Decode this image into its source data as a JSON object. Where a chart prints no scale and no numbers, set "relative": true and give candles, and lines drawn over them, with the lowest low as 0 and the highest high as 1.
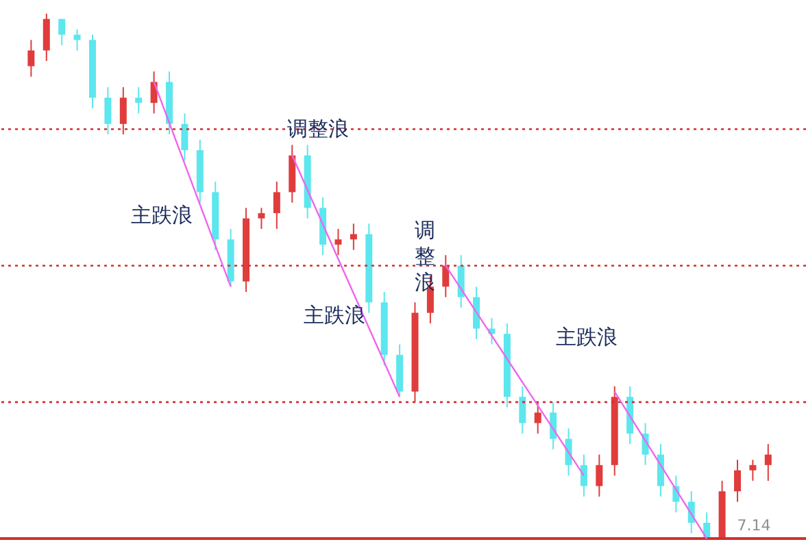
{
  "chart_data": {
    "type": "candlestick",
    "relative": true,
    "categories": [
      null,
      null,
      null,
      null,
      null,
      null,
      null,
      null,
      null,
      null,
      null,
      null,
      null,
      null,
      null,
      null,
      null,
      null,
      null,
      null,
      null,
      null,
      null,
      null,
      null,
      null,
      null,
      null,
      null,
      null,
      null,
      null,
      null,
      null,
      null,
      null,
      null,
      null,
      null,
      null,
      null,
      null,
      null,
      null,
      null,
      null,
      null,
      null,
      null
    ],
    "ohlc": [
      [
        0.9,
        0.95,
        0.88,
        0.93
      ],
      [
        0.93,
        1.0,
        0.91,
        0.99
      ],
      [
        0.99,
        0.99,
        0.94,
        0.96
      ],
      [
        0.96,
        0.97,
        0.93,
        0.95
      ],
      [
        0.95,
        0.96,
        0.82,
        0.84
      ],
      [
        0.84,
        0.86,
        0.77,
        0.79
      ],
      [
        0.79,
        0.86,
        0.77,
        0.84
      ],
      [
        0.84,
        0.86,
        0.81,
        0.83
      ],
      [
        0.83,
        0.89,
        0.81,
        0.87
      ],
      [
        0.87,
        0.89,
        0.77,
        0.79
      ],
      [
        0.79,
        0.81,
        0.72,
        0.74
      ],
      [
        0.74,
        0.76,
        0.64,
        0.66
      ],
      [
        0.66,
        0.68,
        0.55,
        0.57
      ],
      [
        0.57,
        0.59,
        0.48,
        0.49
      ],
      [
        0.49,
        0.63,
        0.47,
        0.61
      ],
      [
        0.61,
        0.63,
        0.59,
        0.62
      ],
      [
        0.62,
        0.68,
        0.59,
        0.66
      ],
      [
        0.66,
        0.75,
        0.64,
        0.73
      ],
      [
        0.73,
        0.75,
        0.61,
        0.63
      ],
      [
        0.63,
        0.65,
        0.54,
        0.56
      ],
      [
        0.56,
        0.59,
        0.54,
        0.57
      ],
      [
        0.57,
        0.6,
        0.55,
        0.58
      ],
      [
        0.58,
        0.6,
        0.43,
        0.45
      ],
      [
        0.45,
        0.47,
        0.33,
        0.35
      ],
      [
        0.35,
        0.37,
        0.27,
        0.28
      ],
      [
        0.28,
        0.45,
        0.26,
        0.43
      ],
      [
        0.43,
        0.5,
        0.41,
        0.48
      ],
      [
        0.48,
        0.54,
        0.46,
        0.52
      ],
      [
        0.52,
        0.54,
        0.44,
        0.46
      ],
      [
        0.46,
        0.48,
        0.38,
        0.4
      ],
      [
        0.4,
        0.42,
        0.37,
        0.39
      ],
      [
        0.39,
        0.41,
        0.25,
        0.27
      ],
      [
        0.27,
        0.29,
        0.2,
        0.22
      ],
      [
        0.22,
        0.26,
        0.2,
        0.24
      ],
      [
        0.24,
        0.26,
        0.17,
        0.19
      ],
      [
        0.19,
        0.21,
        0.12,
        0.14
      ],
      [
        0.14,
        0.16,
        0.08,
        0.1
      ],
      [
        0.1,
        0.16,
        0.08,
        0.14
      ],
      [
        0.14,
        0.29,
        0.12,
        0.27
      ],
      [
        0.27,
        0.29,
        0.18,
        0.2
      ],
      [
        0.2,
        0.22,
        0.14,
        0.16
      ],
      [
        0.16,
        0.18,
        0.08,
        0.1
      ],
      [
        0.1,
        0.12,
        0.05,
        0.07
      ],
      [
        0.07,
        0.09,
        0.01,
        0.03
      ],
      [
        0.03,
        0.05,
        0.0,
        0.0
      ],
      [
        0.0,
        0.11,
        0.0,
        0.09
      ],
      [
        0.09,
        0.15,
        0.07,
        0.13
      ],
      [
        0.13,
        0.15,
        0.11,
        0.14
      ],
      [
        0.14,
        0.18,
        0.11,
        0.16
      ]
    ],
    "colors": [
      "#e03c3c",
      "#e03c3c",
      "#5ce6ee",
      "#5ce6ee",
      "#5ce6ee",
      "#5ce6ee",
      "#e03c3c",
      "#5ce6ee",
      "#e03c3c",
      "#5ce6ee",
      "#5ce6ee",
      "#5ce6ee",
      "#5ce6ee",
      "#5ce6ee",
      "#e03c3c",
      "#e03c3c",
      "#e03c3c",
      "#e03c3c",
      "#5ce6ee",
      "#5ce6ee",
      "#e03c3c",
      "#e03c3c",
      "#5ce6ee",
      "#5ce6ee",
      "#5ce6ee",
      "#e03c3c",
      "#e03c3c",
      "#e03c3c",
      "#5ce6ee",
      "#5ce6ee",
      "#5ce6ee",
      "#5ce6ee",
      "#5ce6ee",
      "#e03c3c",
      "#5ce6ee",
      "#5ce6ee",
      "#5ce6ee",
      "#e03c3c",
      "#e03c3c",
      "#5ce6ee",
      "#5ce6ee",
      "#5ce6ee",
      "#5ce6ee",
      "#5ce6ee",
      "#5ce6ee",
      "#e03c3c",
      "#e03c3c",
      "#e03c3c",
      "#e03c3c"
    ],
    "series": [
      {
        "type": "line",
        "color": "#ee66ee",
        "values": [
          null,
          null,
          null,
          null,
          null,
          null,
          null,
          null,
          0.87,
          null,
          null,
          null,
          null,
          0.48,
          null,
          null,
          null,
          null,
          null,
          null,
          null,
          null,
          null,
          null,
          null,
          null,
          null,
          null,
          null,
          null,
          null,
          null,
          null,
          null,
          null,
          null,
          null,
          null,
          null,
          null,
          null,
          null,
          null,
          null,
          null,
          null,
          null,
          null,
          null
        ]
      },
      {
        "type": "line",
        "color": "#ee66ee",
        "values": [
          null,
          null,
          null,
          null,
          null,
          null,
          null,
          null,
          null,
          null,
          null,
          null,
          null,
          null,
          null,
          null,
          null,
          0.73,
          null,
          null,
          null,
          null,
          null,
          null,
          0.27,
          null,
          null,
          null,
          null,
          null,
          null,
          null,
          null,
          null,
          null,
          null,
          null,
          null,
          null,
          null,
          null,
          null,
          null,
          null,
          null,
          null,
          null,
          null,
          null
        ]
      },
      {
        "type": "line",
        "color": "#ee66ee",
        "values": [
          null,
          null,
          null,
          null,
          null,
          null,
          null,
          null,
          null,
          null,
          null,
          null,
          null,
          null,
          null,
          null,
          null,
          null,
          null,
          null,
          null,
          null,
          null,
          null,
          null,
          null,
          null,
          0.52,
          null,
          null,
          null,
          null,
          null,
          null,
          null,
          null,
          0.12,
          null,
          null,
          null,
          null,
          null,
          null,
          null,
          null,
          null,
          null,
          null,
          null
        ]
      },
      {
        "type": "line",
        "color": "#ee66ee",
        "values": [
          null,
          null,
          null,
          null,
          null,
          null,
          null,
          null,
          null,
          null,
          null,
          null,
          null,
          null,
          null,
          null,
          null,
          null,
          null,
          null,
          null,
          null,
          null,
          null,
          null,
          null,
          null,
          null,
          null,
          null,
          null,
          null,
          null,
          null,
          null,
          null,
          null,
          null,
          0.28,
          null,
          null,
          null,
          null,
          null,
          0.0,
          null,
          null,
          null,
          null
        ]
      }
    ],
    "ref_lines": [
      {
        "axis": "y",
        "value": 0.78,
        "color": "#d03030",
        "line_style": "dotted"
      },
      {
        "axis": "y",
        "value": 0.52,
        "color": "#d03030",
        "line_style": "dotted"
      },
      {
        "axis": "y",
        "value": 0.26,
        "color": "#d03030",
        "line_style": "dotted"
      },
      {
        "axis": "y",
        "value": 0.0,
        "color": "#d03030",
        "line_style": "solid"
      }
    ],
    "annotations": [
      "调整浪",
      "主跌浪",
      "调整浪",
      "主跌浪",
      "主跌浪",
      "7.14"
    ],
    "marker": "none"
  }
}
